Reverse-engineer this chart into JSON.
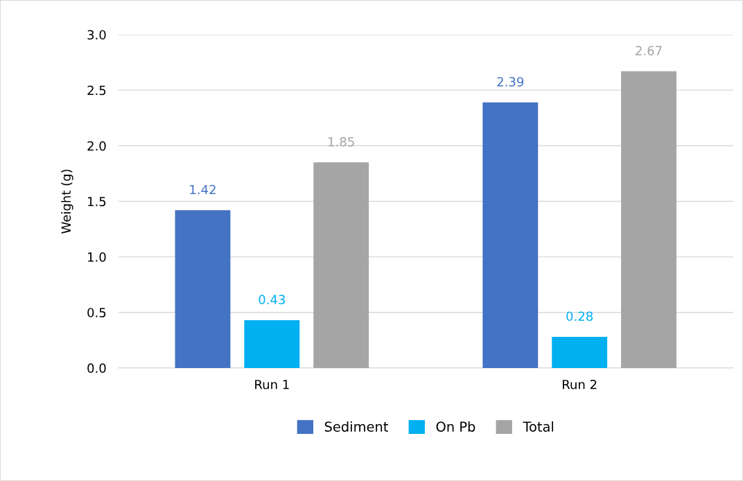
{
  "chart_data": {
    "type": "bar",
    "ylabel": "Weight (g)",
    "categories": [
      "Run 1",
      "Run 2"
    ],
    "series": [
      {
        "name": "Sediment",
        "color": "#4472c4",
        "values": [
          1.42,
          2.39
        ]
      },
      {
        "name": "On Pb",
        "color": "#00b0f0",
        "values": [
          0.43,
          0.28
        ]
      },
      {
        "name": "Total",
        "color": "#a5a5a5",
        "values": [
          1.85,
          2.67
        ]
      }
    ],
    "ylim": [
      0,
      3.0
    ],
    "yticks": [
      {
        "value": 0,
        "label": "0.0"
      },
      {
        "value": 0.5,
        "label": "0.5"
      },
      {
        "value": 1.0,
        "label": "1.0"
      },
      {
        "value": 1.5,
        "label": "1.5"
      },
      {
        "value": 2.0,
        "label": "2.0"
      },
      {
        "value": 2.5,
        "label": "2.5"
      },
      {
        "value": 3.0,
        "label": "3.0"
      }
    ],
    "grid": "y",
    "legend": "bottom",
    "data_labels": true
  }
}
